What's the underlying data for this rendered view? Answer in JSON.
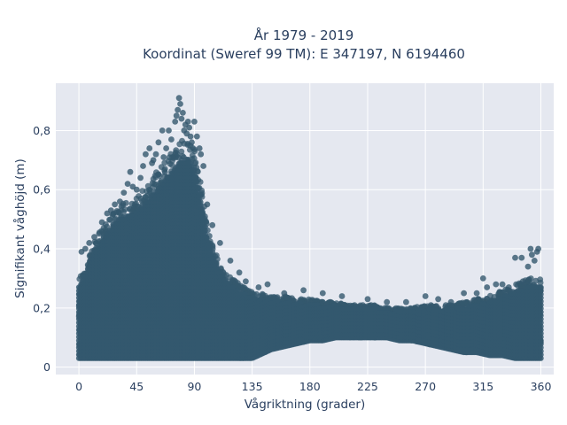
{
  "chart_data": {
    "type": "scatter",
    "title_line1": "År 1979 - 2019",
    "title_line2": "Koordinat (Sweref 99 TM): E 347197, N 6194460",
    "xlabel": "Vågriktning (grader)",
    "ylabel": "Signifikant våghöjd (m)",
    "xlim": [
      -18,
      370
    ],
    "ylim": [
      -0.025,
      0.96
    ],
    "x_ticks": [
      0,
      45,
      90,
      135,
      180,
      225,
      270,
      315,
      360
    ],
    "x_tick_labels": [
      "0",
      "45",
      "90",
      "135",
      "180",
      "225",
      "270",
      "315",
      "360"
    ],
    "y_ticks": [
      0,
      0.2,
      0.4,
      0.6,
      0.8
    ],
    "y_tick_labels": [
      "0",
      "0,2",
      "0,4",
      "0,6",
      "0,8"
    ],
    "grid": true,
    "marker_color": "#34586e",
    "plot_background": "#e5e8f0",
    "envelope": {
      "direction": [
        0,
        5,
        10,
        15,
        20,
        25,
        30,
        35,
        40,
        45,
        50,
        55,
        60,
        65,
        70,
        75,
        80,
        85,
        90,
        95,
        100,
        105,
        110,
        115,
        120,
        125,
        130,
        135,
        140,
        150,
        160,
        170,
        180,
        190,
        200,
        210,
        220,
        230,
        240,
        250,
        260,
        270,
        280,
        290,
        300,
        310,
        320,
        330,
        340,
        350,
        355,
        360
      ],
      "upper": [
        0.3,
        0.34,
        0.4,
        0.45,
        0.48,
        0.52,
        0.55,
        0.56,
        0.57,
        0.58,
        0.6,
        0.63,
        0.66,
        0.68,
        0.72,
        0.74,
        0.77,
        0.78,
        0.74,
        0.62,
        0.48,
        0.4,
        0.35,
        0.32,
        0.3,
        0.28,
        0.27,
        0.26,
        0.25,
        0.24,
        0.24,
        0.23,
        0.23,
        0.22,
        0.22,
        0.21,
        0.21,
        0.21,
        0.2,
        0.2,
        0.2,
        0.21,
        0.21,
        0.21,
        0.22,
        0.23,
        0.24,
        0.26,
        0.28,
        0.3,
        0.3,
        0.3
      ],
      "lower": [
        0.03,
        0.03,
        0.03,
        0.03,
        0.03,
        0.03,
        0.03,
        0.03,
        0.03,
        0.03,
        0.03,
        0.03,
        0.03,
        0.03,
        0.03,
        0.03,
        0.03,
        0.03,
        0.03,
        0.03,
        0.03,
        0.03,
        0.03,
        0.03,
        0.03,
        0.03,
        0.03,
        0.03,
        0.04,
        0.06,
        0.07,
        0.08,
        0.09,
        0.09,
        0.1,
        0.1,
        0.1,
        0.1,
        0.1,
        0.09,
        0.09,
        0.08,
        0.07,
        0.06,
        0.05,
        0.05,
        0.04,
        0.04,
        0.03,
        0.03,
        0.03,
        0.03
      ]
    },
    "outliers": {
      "x": [
        2,
        5,
        8,
        12,
        18,
        22,
        25,
        28,
        32,
        35,
        38,
        40,
        42,
        45,
        48,
        50,
        52,
        55,
        57,
        58,
        60,
        62,
        65,
        66,
        68,
        70,
        72,
        75,
        76,
        77,
        78,
        79,
        80,
        81,
        82,
        83,
        84,
        85,
        86,
        87,
        88,
        90,
        92,
        94,
        95,
        97,
        100,
        104,
        110,
        118,
        125,
        130,
        140,
        147,
        160,
        175,
        190,
        205,
        225,
        240,
        255,
        270,
        280,
        290,
        300,
        310,
        315,
        318,
        325,
        330,
        335,
        340,
        345,
        346,
        350,
        352,
        353,
        355,
        357,
        358
      ],
      "y": [
        0.39,
        0.4,
        0.42,
        0.44,
        0.49,
        0.52,
        0.53,
        0.55,
        0.56,
        0.59,
        0.62,
        0.66,
        0.61,
        0.6,
        0.64,
        0.68,
        0.72,
        0.74,
        0.69,
        0.7,
        0.72,
        0.76,
        0.8,
        0.71,
        0.74,
        0.8,
        0.77,
        0.83,
        0.85,
        0.87,
        0.91,
        0.89,
        0.84,
        0.86,
        0.8,
        0.82,
        0.79,
        0.83,
        0.81,
        0.78,
        0.76,
        0.83,
        0.78,
        0.74,
        0.72,
        0.68,
        0.55,
        0.48,
        0.42,
        0.36,
        0.32,
        0.29,
        0.27,
        0.28,
        0.25,
        0.26,
        0.25,
        0.24,
        0.23,
        0.22,
        0.22,
        0.24,
        0.23,
        0.22,
        0.25,
        0.25,
        0.3,
        0.27,
        0.28,
        0.28,
        0.27,
        0.37,
        0.37,
        0.29,
        0.34,
        0.4,
        0.38,
        0.36,
        0.39,
        0.4
      ]
    }
  }
}
